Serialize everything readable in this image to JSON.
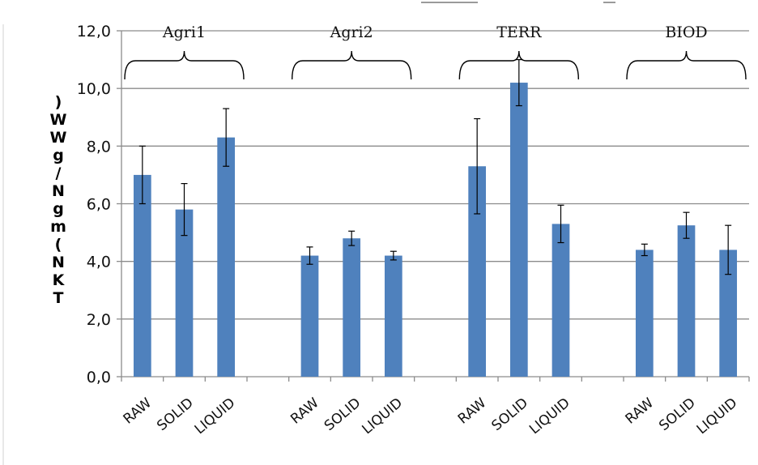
{
  "chart_data": {
    "type": "bar",
    "ylabel": ") W W g / N g m ( N K T",
    "ylim": [
      0,
      12
    ],
    "yticks": [
      "0,0",
      "2,0",
      "4,0",
      "6,0",
      "8,0",
      "10,0",
      "12,0"
    ],
    "grid": true,
    "groups": [
      {
        "name": "Agri1",
        "categories": [
          "RAW",
          "SOLID",
          "LIQUID"
        ],
        "values": [
          7.0,
          5.8,
          8.3
        ],
        "errors": [
          1.0,
          0.9,
          1.0
        ]
      },
      {
        "name": "Agri2",
        "categories": [
          "RAW",
          "SOLID",
          "LIQUID"
        ],
        "values": [
          4.2,
          4.8,
          4.2
        ],
        "errors": [
          0.3,
          0.25,
          0.15
        ]
      },
      {
        "name": "TERR",
        "categories": [
          "RAW",
          "SOLID",
          "LIQUID"
        ],
        "values": [
          7.3,
          10.2,
          5.3
        ],
        "errors": [
          1.65,
          0.8,
          0.65
        ]
      },
      {
        "name": "BIOD",
        "categories": [
          "RAW",
          "SOLID",
          "LIQUID"
        ],
        "values": [
          4.4,
          5.25,
          4.4
        ],
        "errors": [
          0.2,
          0.45,
          0.85
        ]
      }
    ],
    "bar_color": "#4f81bd",
    "grid_color": "#8c8c8c"
  }
}
